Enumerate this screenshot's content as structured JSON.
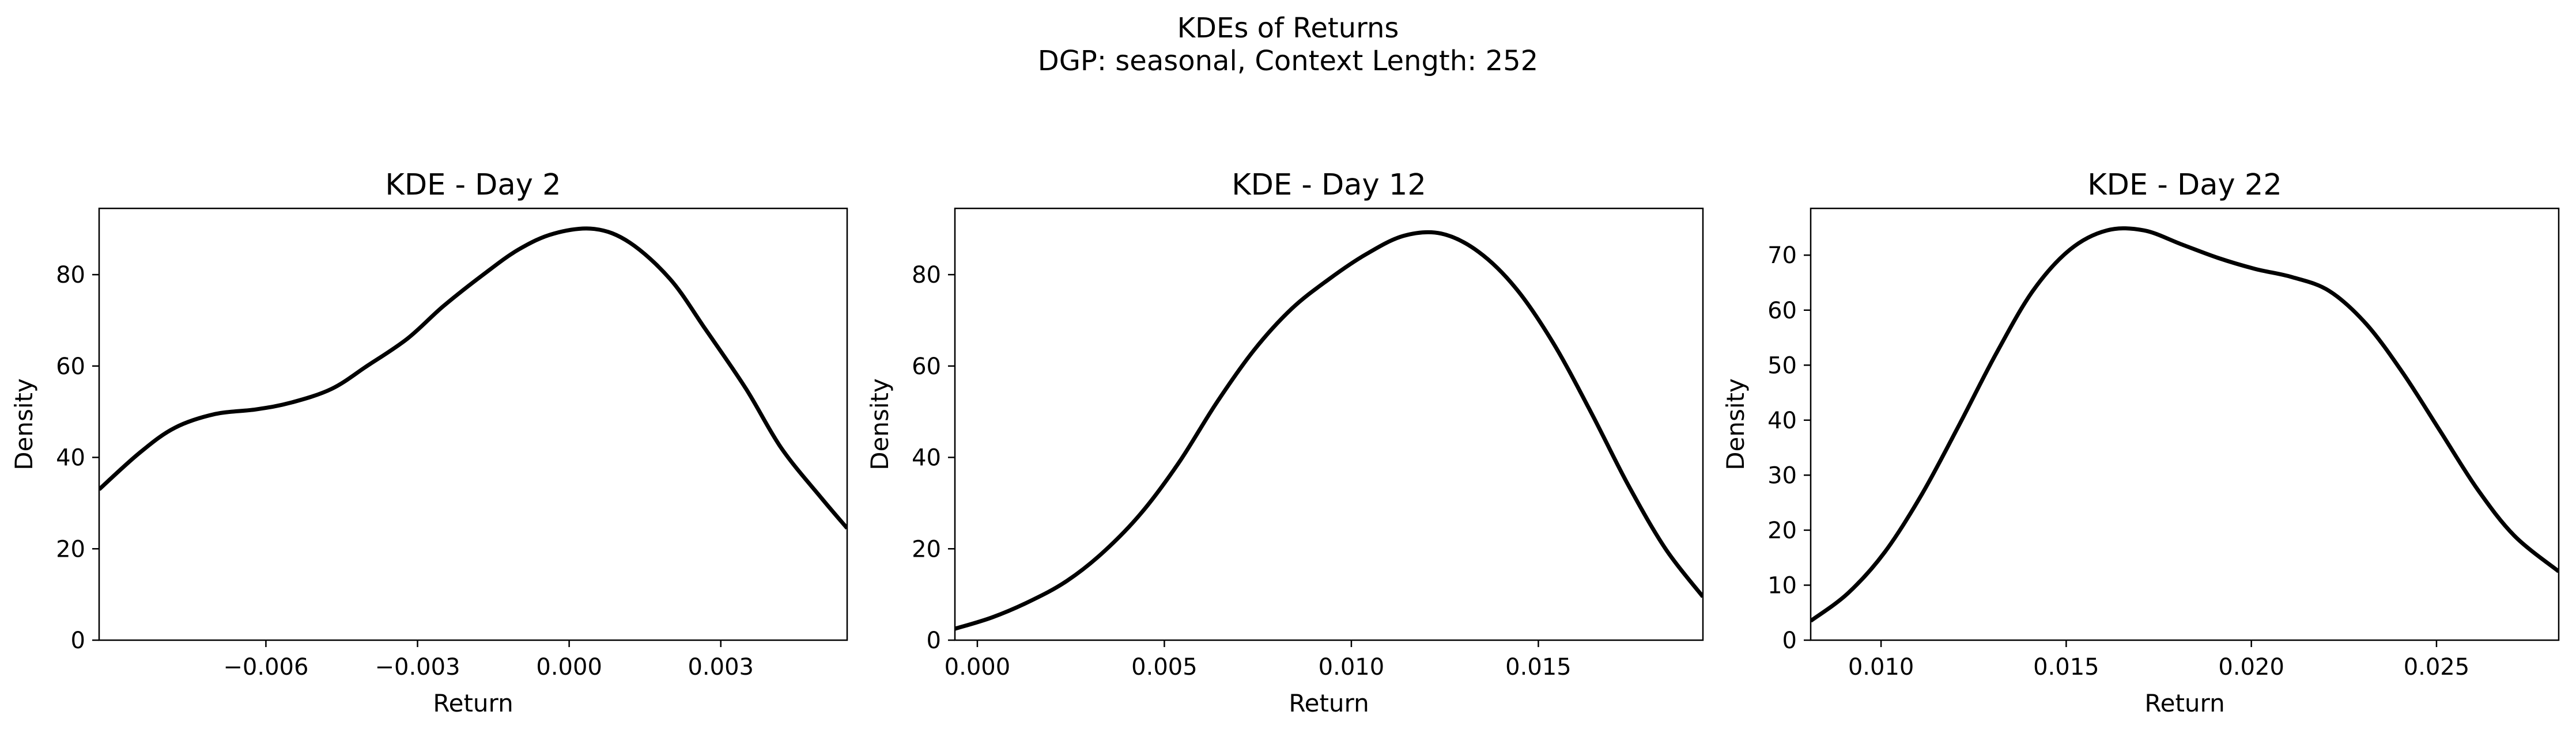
{
  "figure": {
    "title_line1": "KDEs of Returns",
    "title_line2": "DGP: seasonal, Context Length: 252"
  },
  "chart_data": [
    {
      "type": "line",
      "title": "KDE - Day 2",
      "xlabel": "Return",
      "ylabel": "Density",
      "xlim": [
        -0.0093,
        0.0055
      ],
      "ylim": [
        0,
        94.5
      ],
      "xticks": [
        -0.006,
        -0.003,
        0.0,
        0.003
      ],
      "xtick_labels": [
        "−0.006",
        "−0.003",
        "0.000",
        "0.003"
      ],
      "yticks": [
        0,
        20,
        40,
        60,
        80
      ],
      "ytick_labels": [
        "0",
        "20",
        "40",
        "60",
        "80"
      ],
      "grid": false,
      "line_color": "#000000",
      "x": [
        -0.0093,
        -0.0085,
        -0.0078,
        -0.007,
        -0.0062,
        -0.0055,
        -0.0047,
        -0.004,
        -0.0032,
        -0.0025,
        -0.0017,
        -0.001,
        -0.0003,
        0.0005,
        0.0012,
        0.002,
        0.0027,
        0.0035,
        0.0042,
        0.005,
        0.0055
      ],
      "y": [
        33,
        41,
        46.5,
        49.5,
        50.5,
        52,
        55,
        60,
        66,
        73,
        80,
        85.5,
        89,
        90,
        87,
        79,
        68,
        55,
        42,
        31,
        24.5
      ]
    },
    {
      "type": "line",
      "title": "KDE - Day 12",
      "xlabel": "Return",
      "ylabel": "Density",
      "xlim": [
        -0.0006,
        0.0194
      ],
      "ylim": [
        0,
        94.5
      ],
      "xticks": [
        0.0,
        0.005,
        0.01,
        0.015
      ],
      "xtick_labels": [
        "0.000",
        "0.005",
        "0.010",
        "0.015"
      ],
      "yticks": [
        0,
        20,
        40,
        60,
        80
      ],
      "ytick_labels": [
        "0",
        "20",
        "40",
        "60",
        "80"
      ],
      "grid": false,
      "line_color": "#000000",
      "x": [
        -0.0006,
        0.0004,
        0.0014,
        0.0024,
        0.0034,
        0.0044,
        0.0054,
        0.0064,
        0.0074,
        0.0084,
        0.0094,
        0.0104,
        0.0114,
        0.0124,
        0.0134,
        0.0144,
        0.0154,
        0.0164,
        0.0174,
        0.0184,
        0.0194
      ],
      "y": [
        2.5,
        5,
        8.5,
        13,
        19.5,
        28,
        39,
        52,
        63.5,
        72.5,
        79,
        84.5,
        88.5,
        89,
        85,
        77,
        65,
        50,
        34,
        20,
        9.5
      ]
    },
    {
      "type": "line",
      "title": "KDE - Day 22",
      "xlabel": "Return",
      "ylabel": "Density",
      "xlim": [
        0.0081,
        0.0283
      ],
      "ylim": [
        0,
        78.5
      ],
      "xticks": [
        0.01,
        0.015,
        0.02,
        0.025
      ],
      "xtick_labels": [
        "0.010",
        "0.015",
        "0.020",
        "0.025"
      ],
      "yticks": [
        0,
        10,
        20,
        30,
        40,
        50,
        60,
        70
      ],
      "ytick_labels": [
        "0",
        "10",
        "20",
        "30",
        "40",
        "50",
        "60",
        "70"
      ],
      "grid": false,
      "line_color": "#000000",
      "x": [
        0.0081,
        0.0091,
        0.0101,
        0.0111,
        0.0121,
        0.0131,
        0.0141,
        0.0151,
        0.0161,
        0.0171,
        0.0181,
        0.0191,
        0.0201,
        0.0211,
        0.0221,
        0.0231,
        0.0241,
        0.0251,
        0.0261,
        0.0271,
        0.0283
      ],
      "y": [
        3.5,
        8.5,
        16,
        26.5,
        39,
        52,
        63.5,
        71,
        74.5,
        74.5,
        72,
        69.5,
        67.5,
        66,
        63.5,
        57.5,
        48.5,
        38,
        27.5,
        19,
        12.5
      ]
    }
  ]
}
